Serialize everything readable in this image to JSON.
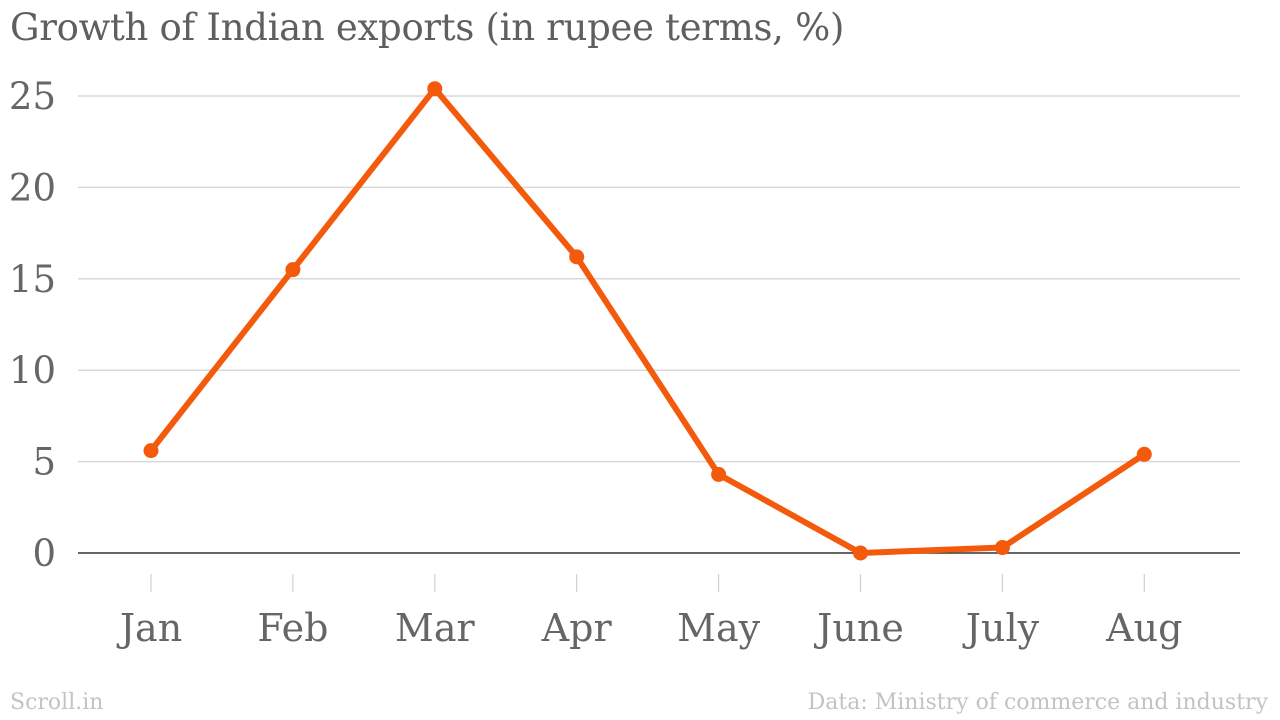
{
  "chart_data": {
    "type": "line",
    "title": "Growth of Indian exports (in rupee terms, %)",
    "categories": [
      "Jan",
      "Feb",
      "Mar",
      "Apr",
      "May",
      "June",
      "July",
      "Aug"
    ],
    "series": [
      {
        "values": [
          5.6,
          15.5,
          25.4,
          16.2,
          4.3,
          0.0,
          0.3,
          5.4
        ],
        "color": "#f45a0c"
      }
    ],
    "yticks": [
      0,
      5,
      10,
      15,
      20,
      25
    ],
    "ylim": [
      0,
      25
    ],
    "grid": true,
    "xlabel": "",
    "ylabel": ""
  },
  "footer": {
    "source_brand": "Scroll.in",
    "data_credit": "Data: Ministry of commerce and industry"
  }
}
